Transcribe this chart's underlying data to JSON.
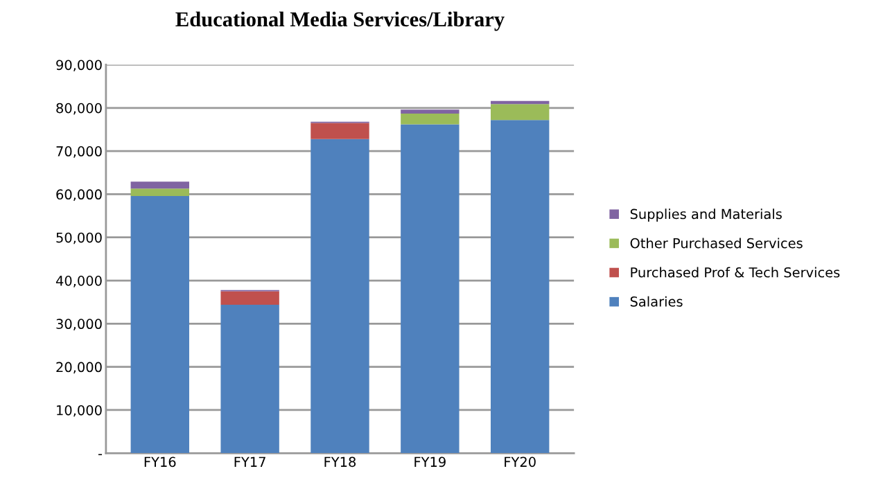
{
  "chart_data": {
    "type": "bar",
    "title": "Educational Media Services/Library",
    "stacked": true,
    "categories": [
      "FY16",
      "FY17",
      "FY18",
      "FY19",
      "FY20"
    ],
    "series": [
      {
        "name": "Salaries",
        "color": "#4f81bd",
        "values": [
          59600,
          34400,
          72800,
          76200,
          77200
        ]
      },
      {
        "name": "Purchased Prof & Tech Services",
        "color": "#c0504d",
        "values": [
          0,
          3100,
          3700,
          0,
          0
        ]
      },
      {
        "name": "Other Purchased Services",
        "color": "#9bbb59",
        "values": [
          1700,
          0,
          0,
          2500,
          3700
        ]
      },
      {
        "name": "Supplies and Materials",
        "color": "#8064a2",
        "values": [
          1600,
          300,
          300,
          900,
          700
        ]
      }
    ],
    "ylim": [
      0,
      90000
    ],
    "yticks": [
      {
        "value": 0,
        "label": "-"
      },
      {
        "value": 10000,
        "label": "10,000"
      },
      {
        "value": 20000,
        "label": "20,000"
      },
      {
        "value": 30000,
        "label": "30,000"
      },
      {
        "value": 40000,
        "label": "40,000"
      },
      {
        "value": 50000,
        "label": "50,000"
      },
      {
        "value": 60000,
        "label": "60,000"
      },
      {
        "value": 70000,
        "label": "70,000"
      },
      {
        "value": 80000,
        "label": "80,000"
      },
      {
        "value": 90000,
        "label": "90,000"
      }
    ],
    "grid": "y",
    "legend": "right"
  }
}
